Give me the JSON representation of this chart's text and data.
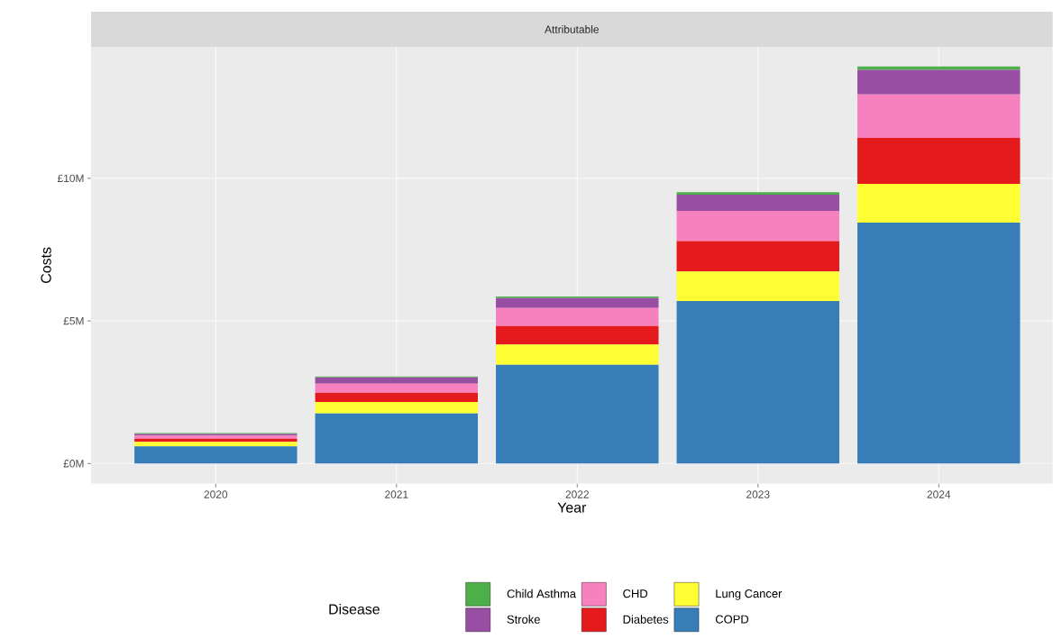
{
  "chart_data": {
    "type": "bar",
    "title": "Attributable",
    "xlabel": "Year",
    "ylabel": "Costs",
    "legend_title": "Disease",
    "categories": [
      "2020",
      "2021",
      "2022",
      "2023",
      "2024"
    ],
    "stacked": true,
    "series": [
      {
        "name": "COPD",
        "color": "#377eb8",
        "values": [
          0.6,
          1.76,
          3.46,
          5.7,
          8.45
        ]
      },
      {
        "name": "Lung Cancer",
        "color": "#ffff33",
        "values": [
          0.16,
          0.4,
          0.71,
          1.03,
          1.36
        ]
      },
      {
        "name": "Diabetes",
        "color": "#e41a1c",
        "values": [
          0.11,
          0.32,
          0.65,
          1.07,
          1.61
        ]
      },
      {
        "name": "CHD",
        "color": "#f781bf",
        "values": [
          0.11,
          0.32,
          0.63,
          1.06,
          1.52
        ]
      },
      {
        "name": "Stroke",
        "color": "#984ea3",
        "values": [
          0.06,
          0.22,
          0.35,
          0.57,
          0.86
        ]
      },
      {
        "name": "Child Asthma",
        "color": "#4daf4a",
        "values": [
          0.03,
          0.03,
          0.06,
          0.08,
          0.12
        ]
      }
    ],
    "ylim": [
      -0.71,
      14.61
    ],
    "yticks": [
      {
        "value": 0,
        "label": "£0M"
      },
      {
        "value": 5,
        "label": "£5M"
      },
      {
        "value": 10,
        "label": "£10M"
      }
    ],
    "grid": true,
    "legend": "bottom"
  }
}
